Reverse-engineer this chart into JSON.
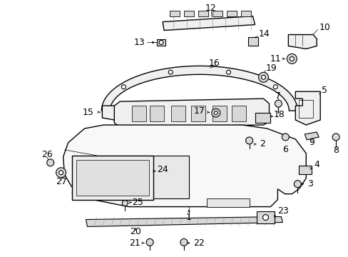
{
  "background_color": "#ffffff",
  "line_color": "#000000",
  "figsize": [
    4.89,
    3.6
  ],
  "dpi": 100,
  "font_size": 8.5
}
